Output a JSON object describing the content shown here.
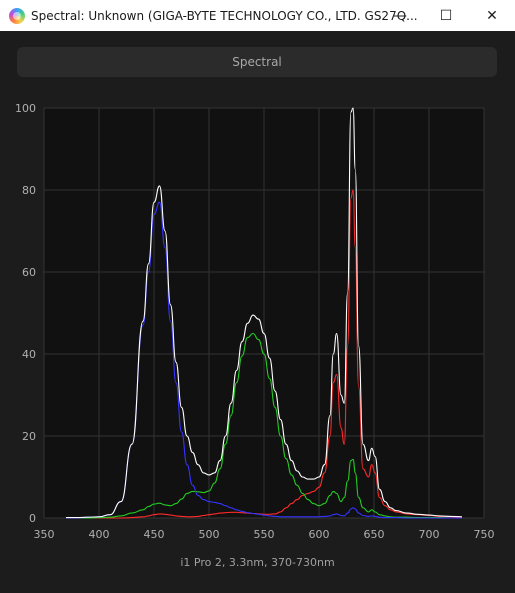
{
  "window": {
    "title": "Spectral: Unknown (GIGA-BYTE TECHNOLOGY CO., LTD. GS27Q...",
    "minimize_glyph": "—",
    "maximize_glyph": "☐",
    "close_glyph": "✕",
    "app_icon": "spectrum-app-icon"
  },
  "tab": {
    "label": "Spectral"
  },
  "footer": {
    "label": "i1 Pro 2, 3.3nm, 370-730nm"
  },
  "colors": {
    "background": "#1c1c1c",
    "plot_background": "#111111",
    "grid": "#333333",
    "white_series": "#ffffff",
    "red_series": "#ff2a2a",
    "green_series": "#22cc22",
    "blue_series": "#3434ff"
  },
  "chart_data": {
    "type": "line",
    "xlim": [
      350,
      750
    ],
    "ylim": [
      0,
      100
    ],
    "xticks": [
      350,
      400,
      450,
      500,
      550,
      600,
      650,
      700,
      750
    ],
    "yticks": [
      0,
      20,
      40,
      60,
      80,
      100
    ],
    "grid": true,
    "x": [
      370,
      380,
      390,
      400,
      410,
      420,
      430,
      440,
      445,
      450,
      455,
      460,
      465,
      470,
      475,
      480,
      485,
      490,
      495,
      500,
      505,
      510,
      515,
      520,
      525,
      530,
      535,
      540,
      545,
      550,
      555,
      560,
      565,
      570,
      575,
      580,
      585,
      590,
      595,
      600,
      605,
      610,
      613,
      616,
      620,
      623,
      626,
      629,
      631,
      633,
      636,
      640,
      645,
      648,
      651,
      655,
      660,
      665,
      670,
      680,
      690,
      700,
      710,
      720,
      730
    ],
    "series": [
      {
        "color": "white",
        "values": [
          0.1,
          0.1,
          0.2,
          0.3,
          0.8,
          4,
          18,
          48,
          62,
          77,
          81,
          70,
          52,
          38,
          27,
          20,
          16,
          13,
          11,
          10.5,
          11,
          14,
          20,
          28,
          36,
          43,
          47.5,
          49.5,
          48.5,
          45,
          39,
          31,
          24,
          18,
          14,
          11.5,
          10,
          9.5,
          9.5,
          10,
          13,
          25,
          40,
          45,
          30,
          28,
          55,
          99,
          100,
          85,
          42,
          18,
          14,
          17,
          15,
          7,
          4,
          2.5,
          1.8,
          1.2,
          0.9,
          0.7,
          0.5,
          0.4,
          0.3
        ]
      },
      {
        "color": "red",
        "values": [
          0,
          0,
          0,
          0,
          0,
          0,
          0.1,
          0.3,
          0.5,
          0.8,
          1,
          0.9,
          0.7,
          0.5,
          0.4,
          0.3,
          0.3,
          0.4,
          0.6,
          0.8,
          1,
          1.2,
          1.3,
          1.4,
          1.4,
          1.3,
          1.2,
          1.1,
          1.0,
          0.9,
          0.9,
          1.0,
          1.5,
          2.5,
          3.5,
          4.5,
          5.5,
          6,
          6.5,
          7.5,
          11,
          20,
          33,
          35,
          22,
          18,
          42,
          78,
          80,
          66,
          32,
          12,
          10,
          13,
          11,
          5,
          3,
          2,
          1.5,
          1,
          0.8,
          0.6,
          0.4,
          0.3,
          0.2
        ]
      },
      {
        "color": "green",
        "values": [
          0,
          0,
          0,
          0.1,
          0.2,
          0.5,
          1.2,
          2,
          2.8,
          3.4,
          3.6,
          3.2,
          3,
          3.5,
          4.6,
          6,
          6.5,
          6.4,
          6.2,
          6.6,
          8.5,
          12,
          18,
          25,
          33,
          39.5,
          44,
          45,
          43.5,
          40,
          34,
          27,
          20,
          14.5,
          10.5,
          8,
          6,
          4.5,
          3.5,
          3,
          3.5,
          5.5,
          6.5,
          6,
          4,
          5,
          9,
          14,
          14.3,
          11,
          5,
          2.5,
          1.5,
          2,
          1.5,
          0.8,
          0.5,
          0.3,
          0.2,
          0.2,
          0.1,
          0.1,
          0.1,
          0,
          0
        ]
      },
      {
        "color": "blue",
        "values": [
          0,
          0,
          0.2,
          0.3,
          0.8,
          4,
          18,
          47,
          60,
          74,
          77,
          66,
          48,
          33,
          21,
          13,
          8,
          5.5,
          4.5,
          4,
          3.8,
          3.5,
          3,
          2.5,
          2,
          1.6,
          1.3,
          1.1,
          0.9,
          0.7,
          0.5,
          0.4,
          0.3,
          0.3,
          0.3,
          0.3,
          0.3,
          0.3,
          0.3,
          0.3,
          0.4,
          0.5,
          0.8,
          1,
          0.6,
          0.5,
          1.2,
          2.2,
          2.5,
          2.2,
          1.2,
          0.6,
          0.4,
          0.5,
          0.4,
          0.2,
          0.1,
          0.1,
          0.1,
          0,
          0,
          0,
          0,
          0,
          0
        ]
      }
    ]
  }
}
